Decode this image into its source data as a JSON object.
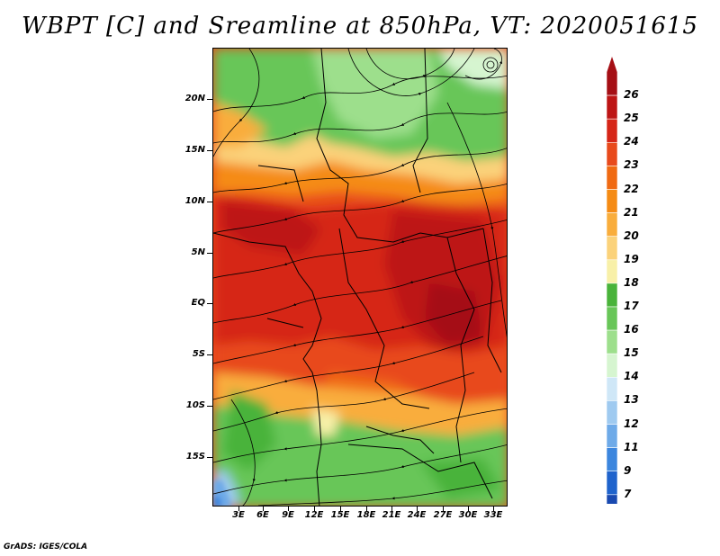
{
  "title": "WBPT [C] and Sreamline at 850hPa, VT: 2020051615",
  "footer": "GrADS: IGES/COLA",
  "lat_labels": [
    "20N",
    "15N",
    "10N",
    "5N",
    "EQ",
    "5S",
    "10S",
    "15S"
  ],
  "lon_labels": [
    "3E",
    "6E",
    "9E",
    "12E",
    "15E",
    "18E",
    "21E",
    "24E",
    "27E",
    "30E",
    "33E"
  ],
  "colorbar": {
    "labels": [
      "26",
      "25",
      "24",
      "23",
      "22",
      "21",
      "20",
      "19",
      "18",
      "17",
      "16",
      "15",
      "14",
      "13",
      "12",
      "11",
      "9",
      "7"
    ],
    "colors": [
      "#a50f15",
      "#bd1515",
      "#d62618",
      "#e84a1c",
      "#f06a12",
      "#f58b14",
      "#f9ad3c",
      "#fbd27a",
      "#f8f0a8",
      "#49b33a",
      "#68c658",
      "#9ddf8c",
      "#d6f5d0",
      "#cfe7f7",
      "#9fcaf0",
      "#6eaae8",
      "#3c86de",
      "#1f63cc",
      "#1949b0"
    ]
  }
}
